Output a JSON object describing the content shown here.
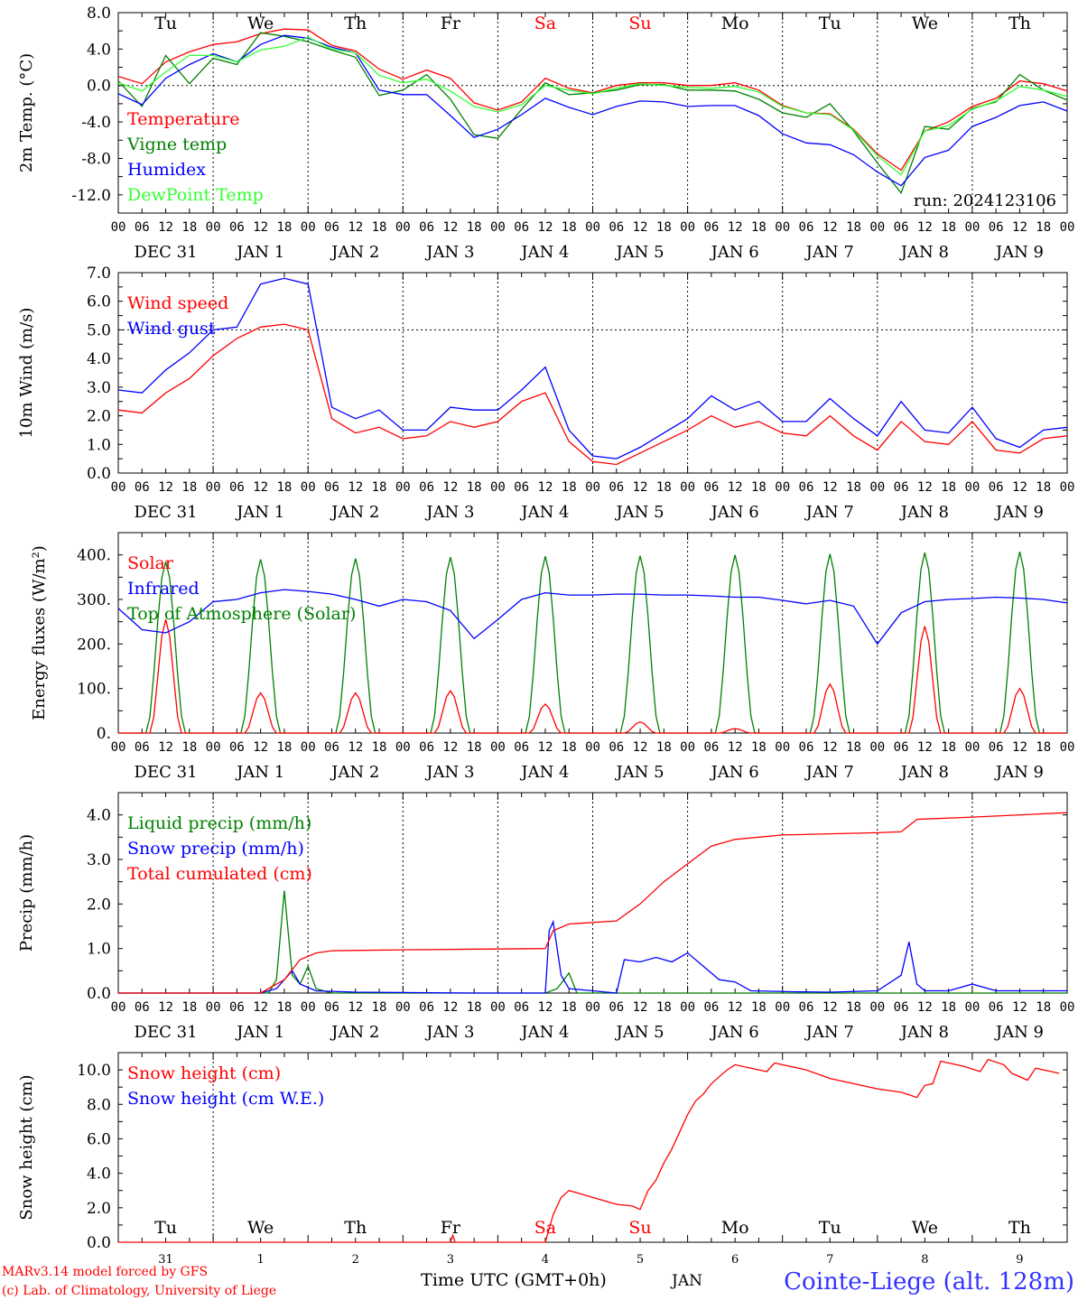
{
  "footer": {
    "model_line": "MARv3.14 model forced by GFS",
    "lab_line": "(c) Lab. of Climatology, University of Liege",
    "time_axis_title": "Time UTC (GMT+0h)",
    "month_label": "JAN",
    "station": "Cointe-Liege (alt. 128m)"
  },
  "colors": {
    "red": "#ff0000",
    "dark_green": "#008000",
    "blue": "#0000ff",
    "light_green": "#33ff33",
    "station_blue": "#3333ff"
  },
  "time_axis": {
    "hour_ticks": [
      "00",
      "06",
      "12",
      "18"
    ],
    "date_labels": [
      "DEC 31",
      "JAN 1",
      "JAN 2",
      "JAN 3",
      "JAN 4",
      "JAN 5",
      "JAN 6",
      "JAN 7",
      "JAN 8",
      "JAN 9"
    ],
    "weekdays": [
      "Tu",
      "We",
      "Th",
      "Fr",
      "Sa",
      "Su",
      "Mo",
      "Tu",
      "We",
      "Th"
    ],
    "weekend_days": [
      4,
      5
    ],
    "day_numbers": [
      "31",
      "1",
      "2",
      "3",
      "4",
      "5",
      "6",
      "7",
      "8",
      "9"
    ]
  },
  "chart_data": [
    {
      "type": "line",
      "ylabel": "2m Temp. (°C)",
      "ylim": [
        -14,
        8
      ],
      "yticks": [
        8,
        4,
        0,
        -4,
        -8,
        -12
      ],
      "ytick_labels": [
        "8.0",
        "4.0",
        "0.0",
        "-4.0",
        "-8.0",
        "-12.0"
      ],
      "zero_line": 0,
      "run_label": "run: 2024123106",
      "x_hours": [
        0,
        6,
        12,
        18,
        24,
        30,
        36,
        42,
        48,
        54,
        60,
        66,
        72,
        78,
        84,
        90,
        96,
        102,
        108,
        114,
        120,
        126,
        132,
        138,
        144,
        150,
        156,
        162,
        168,
        174,
        180,
        186,
        192,
        198,
        204,
        210,
        216,
        222,
        228,
        234,
        240
      ],
      "series": [
        {
          "name": "Temperature",
          "color": "#ff0000",
          "values": [
            1.0,
            0.2,
            2.6,
            3.7,
            4.5,
            4.8,
            5.7,
            6.2,
            6.1,
            4.4,
            3.8,
            1.8,
            0.7,
            1.7,
            0.8,
            -1.9,
            -2.7,
            -1.8,
            0.8,
            -0.3,
            -0.8,
            0.0,
            0.3,
            0.3,
            0.0,
            0.0,
            0.3,
            -0.5,
            -2.2,
            -3.0,
            -3.1,
            -4.8,
            -7.5,
            -9.3,
            -5.0,
            -4.0,
            -2.3,
            -1.4,
            0.5,
            0.2,
            -0.6
          ]
        },
        {
          "name": "Vigne temp",
          "color": "#008000",
          "values": [
            0.5,
            -2.3,
            3.3,
            0.2,
            3.0,
            2.3,
            5.8,
            5.4,
            4.8,
            3.9,
            3.1,
            -1.1,
            -0.5,
            1.2,
            -1.5,
            -5.4,
            -5.8,
            -2.6,
            0.3,
            -1.0,
            -0.8,
            -0.5,
            0.1,
            0.1,
            -0.5,
            -0.5,
            -0.6,
            -1.5,
            -3.0,
            -3.5,
            -2.0,
            -5.0,
            -8.5,
            -11.8,
            -4.5,
            -4.8,
            -2.5,
            -1.8,
            1.2,
            -0.5,
            -1.6
          ]
        },
        {
          "name": "Humidex",
          "color": "#0000ff",
          "values": [
            -0.9,
            -2.1,
            0.8,
            2.3,
            3.5,
            2.6,
            4.5,
            5.5,
            5.2,
            4.2,
            3.6,
            -0.5,
            -1.0,
            -1.0,
            -3.3,
            -5.7,
            -4.8,
            -3.2,
            -1.4,
            -2.4,
            -3.2,
            -2.3,
            -1.7,
            -1.8,
            -2.3,
            -2.2,
            -2.2,
            -3.3,
            -5.3,
            -6.3,
            -6.5,
            -7.6,
            -9.5,
            -11.0,
            -7.9,
            -7.1,
            -4.5,
            -3.5,
            -2.2,
            -1.8,
            -2.8
          ]
        },
        {
          "name": "DewPoint Temp",
          "color": "#33ff33",
          "values": [
            0.3,
            -0.6,
            1.5,
            3.3,
            3.3,
            2.6,
            3.9,
            4.3,
            5.3,
            4.0,
            3.6,
            1.1,
            0.3,
            0.7,
            -0.6,
            -2.3,
            -2.9,
            -2.1,
            0.0,
            -0.5,
            -0.9,
            -0.3,
            0.2,
            0.0,
            -0.2,
            -0.3,
            -0.1,
            -0.7,
            -2.3,
            -3.0,
            -3.2,
            -4.9,
            -7.7,
            -9.8,
            -5.0,
            -4.4,
            -2.6,
            -1.7,
            -0.1,
            -0.5,
            -1.2
          ]
        }
      ]
    },
    {
      "type": "line",
      "ylabel": "10m Wind (m/s)",
      "ylim": [
        0,
        7
      ],
      "yticks": [
        0,
        1,
        2,
        3,
        4,
        5,
        6,
        7
      ],
      "ytick_labels": [
        "0.0",
        "1.0",
        "2.0",
        "3.0",
        "4.0",
        "5.0",
        "6.0",
        "7.0"
      ],
      "ref_line": 5,
      "x_hours": [
        0,
        6,
        12,
        18,
        24,
        30,
        36,
        42,
        48,
        54,
        60,
        66,
        72,
        78,
        84,
        90,
        96,
        102,
        108,
        114,
        120,
        126,
        132,
        138,
        144,
        150,
        156,
        162,
        168,
        174,
        180,
        186,
        192,
        198,
        204,
        210,
        216,
        222,
        228,
        234,
        240
      ],
      "series": [
        {
          "name": "Wind speed",
          "color": "#ff0000",
          "values": [
            2.2,
            2.1,
            2.8,
            3.3,
            4.1,
            4.7,
            5.1,
            5.2,
            5.0,
            1.9,
            1.4,
            1.6,
            1.2,
            1.3,
            1.8,
            1.6,
            1.8,
            2.5,
            2.8,
            1.1,
            0.4,
            0.3,
            0.7,
            1.1,
            1.5,
            2.0,
            1.6,
            1.8,
            1.4,
            1.3,
            2.0,
            1.3,
            0.8,
            1.8,
            1.1,
            1.0,
            1.8,
            0.8,
            0.7,
            1.2,
            1.3
          ]
        },
        {
          "name": "Wind gust",
          "color": "#0000ff",
          "values": [
            2.9,
            2.8,
            3.6,
            4.2,
            5.0,
            5.1,
            6.6,
            6.8,
            6.6,
            2.3,
            1.9,
            2.2,
            1.5,
            1.5,
            2.3,
            2.2,
            2.2,
            2.9,
            3.7,
            1.5,
            0.6,
            0.5,
            0.9,
            1.4,
            1.9,
            2.7,
            2.2,
            2.5,
            1.8,
            1.8,
            2.6,
            1.9,
            1.3,
            2.5,
            1.5,
            1.4,
            2.3,
            1.2,
            0.9,
            1.5,
            1.6
          ]
        }
      ]
    },
    {
      "type": "line",
      "ylabel": "Energy fluxes (W/m²)",
      "ylim": [
        0,
        450
      ],
      "yticks": [
        0,
        100,
        200,
        300,
        400
      ],
      "ytick_labels": [
        "0.",
        "100.",
        "200.",
        "300.",
        "400."
      ],
      "solar_peaks": [
        255,
        90,
        90,
        95,
        65,
        25,
        10,
        110,
        240,
        100
      ],
      "toa_peaks": [
        385,
        390,
        392,
        395,
        397,
        398,
        400,
        402,
        405,
        407
      ],
      "series": [
        {
          "name": "Solar",
          "color": "#ff0000"
        },
        {
          "name": "Infrared",
          "color": "#0000ff",
          "x_hours": [
            0,
            6,
            12,
            18,
            24,
            30,
            36,
            42,
            48,
            54,
            60,
            66,
            72,
            78,
            84,
            90,
            96,
            102,
            108,
            114,
            120,
            126,
            132,
            138,
            144,
            150,
            156,
            162,
            168,
            174,
            180,
            186,
            192,
            198,
            204,
            210,
            216,
            222,
            228,
            234,
            240
          ],
          "values": [
            280,
            232,
            225,
            250,
            295,
            300,
            315,
            322,
            318,
            312,
            300,
            285,
            300,
            295,
            275,
            212,
            255,
            300,
            315,
            310,
            310,
            312,
            312,
            310,
            310,
            308,
            305,
            305,
            298,
            290,
            298,
            285,
            200,
            270,
            295,
            300,
            302,
            305,
            303,
            300,
            292
          ]
        },
        {
          "name": "Top of Atmosphere (Solar)",
          "color": "#008000"
        }
      ]
    },
    {
      "type": "line",
      "ylabel": "Precip (mm/h)",
      "ylim": [
        0,
        4.5
      ],
      "yticks": [
        0,
        1,
        2,
        3,
        4
      ],
      "ytick_labels": [
        "0.0",
        "1.0",
        "2.0",
        "3.0",
        "4.0"
      ],
      "series": [
        {
          "name": "Liquid precip (mm/h)",
          "color": "#008000",
          "points": [
            [
              0,
              0
            ],
            [
              38,
              0
            ],
            [
              40,
              0.3
            ],
            [
              42,
              2.3
            ],
            [
              44,
              0.4
            ],
            [
              46,
              0.2
            ],
            [
              48,
              0.6
            ],
            [
              50,
              0.1
            ],
            [
              54,
              0
            ],
            [
              108,
              0
            ],
            [
              111,
              0.1
            ],
            [
              114,
              0.45
            ],
            [
              116,
              0
            ],
            [
              240,
              0
            ]
          ]
        },
        {
          "name": "Snow precip (mm/h)",
          "color": "#0000ff",
          "points": [
            [
              0,
              0
            ],
            [
              36,
              0
            ],
            [
              40,
              0.1
            ],
            [
              44,
              0.5
            ],
            [
              46,
              0.2
            ],
            [
              50,
              0.05
            ],
            [
              60,
              0.02
            ],
            [
              90,
              0
            ],
            [
              108,
              0
            ],
            [
              109,
              1.4
            ],
            [
              110,
              1.6
            ],
            [
              112,
              0.4
            ],
            [
              114,
              0.1
            ],
            [
              120,
              0.05
            ],
            [
              126,
              0
            ],
            [
              128,
              0.75
            ],
            [
              132,
              0.7
            ],
            [
              136,
              0.8
            ],
            [
              140,
              0.7
            ],
            [
              144,
              0.9
            ],
            [
              148,
              0.6
            ],
            [
              152,
              0.3
            ],
            [
              156,
              0.25
            ],
            [
              160,
              0.05
            ],
            [
              170,
              0.03
            ],
            [
              180,
              0.02
            ],
            [
              192,
              0.05
            ],
            [
              198,
              0.4
            ],
            [
              200,
              1.15
            ],
            [
              202,
              0.2
            ],
            [
              204,
              0.05
            ],
            [
              210,
              0.05
            ],
            [
              216,
              0.2
            ],
            [
              222,
              0.05
            ],
            [
              240,
              0.05
            ]
          ]
        },
        {
          "name": "Total cumulated (cm)",
          "color": "#ff0000",
          "points": [
            [
              0,
              0
            ],
            [
              36,
              0
            ],
            [
              42,
              0.3
            ],
            [
              46,
              0.75
            ],
            [
              50,
              0.9
            ],
            [
              54,
              0.95
            ],
            [
              72,
              0.97
            ],
            [
              96,
              0.99
            ],
            [
              108,
              1.0
            ],
            [
              110,
              1.4
            ],
            [
              114,
              1.55
            ],
            [
              126,
              1.62
            ],
            [
              132,
              2.0
            ],
            [
              138,
              2.5
            ],
            [
              144,
              2.9
            ],
            [
              150,
              3.3
            ],
            [
              156,
              3.45
            ],
            [
              168,
              3.55
            ],
            [
              192,
              3.6
            ],
            [
              198,
              3.62
            ],
            [
              202,
              3.9
            ],
            [
              216,
              3.95
            ],
            [
              240,
              4.05
            ]
          ]
        }
      ]
    },
    {
      "type": "line",
      "ylabel": "Snow height (cm)",
      "ylim": [
        0,
        11
      ],
      "yticks": [
        0,
        2,
        4,
        6,
        8,
        10
      ],
      "ytick_labels": [
        "0.0",
        "2.0",
        "4.0",
        "6.0",
        "8.0",
        "10.0"
      ],
      "series": [
        {
          "name": "Snow height (cm)",
          "color": "#ff0000",
          "points": [
            [
              0,
              0
            ],
            [
              84,
              0
            ],
            [
              84.6,
              0.4
            ],
            [
              85.2,
              0
            ],
            [
              108,
              0
            ],
            [
              110,
              1.6
            ],
            [
              112,
              2.6
            ],
            [
              114,
              3.0
            ],
            [
              120,
              2.6
            ],
            [
              126,
              2.2
            ],
            [
              130,
              2.1
            ],
            [
              132,
              1.9
            ],
            [
              134,
              3.0
            ],
            [
              136,
              3.6
            ],
            [
              138,
              4.6
            ],
            [
              140,
              5.4
            ],
            [
              142,
              6.4
            ],
            [
              144,
              7.4
            ],
            [
              146,
              8.2
            ],
            [
              148,
              8.6
            ],
            [
              150,
              9.2
            ],
            [
              152,
              9.6
            ],
            [
              154,
              10.0
            ],
            [
              156,
              10.3
            ],
            [
              160,
              10.1
            ],
            [
              164,
              9.9
            ],
            [
              166,
              10.4
            ],
            [
              174,
              10.0
            ],
            [
              180,
              9.5
            ],
            [
              192,
              8.9
            ],
            [
              198,
              8.7
            ],
            [
              202,
              8.4
            ],
            [
              204,
              9.1
            ],
            [
              206,
              9.2
            ],
            [
              208,
              10.5
            ],
            [
              214,
              10.2
            ],
            [
              218,
              9.9
            ],
            [
              220,
              10.6
            ],
            [
              224,
              10.3
            ],
            [
              226,
              9.8
            ],
            [
              230,
              9.4
            ],
            [
              232,
              10.1
            ],
            [
              238,
              9.8
            ]
          ]
        },
        {
          "name": "Snow height (cm W.E.)",
          "color": "#0000ff",
          "points": []
        }
      ]
    }
  ]
}
